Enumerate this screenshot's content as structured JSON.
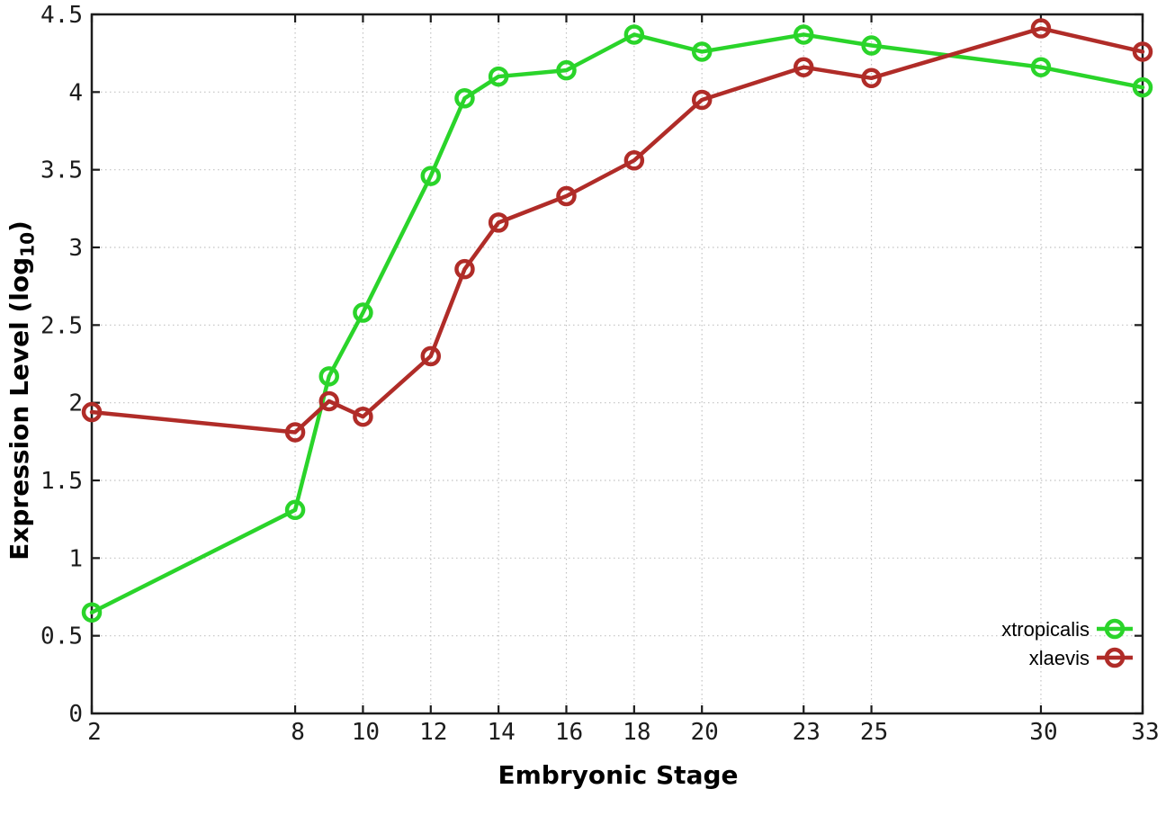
{
  "figure": {
    "background": "#ffffff",
    "axis_color": "#1c1c1c",
    "grid_color": "#c2c2c2",
    "tick_label_color": "#1c1c1c"
  },
  "chart_data": {
    "type": "line",
    "title": "",
    "xlabel": "Embryonic Stage",
    "ylabel": "Expression Level (log10)",
    "ylabel_main": "Expression Level (log",
    "ylabel_sub": "10",
    "ylabel_close": ")",
    "xlim": [
      2,
      33
    ],
    "ylim": [
      0,
      4.5
    ],
    "grid": true,
    "x_ticks": [
      2,
      8,
      10,
      12,
      14,
      16,
      18,
      20,
      23,
      25,
      30,
      33
    ],
    "x_tick_labels": [
      "2",
      "8",
      "10",
      "12",
      "14",
      "16",
      "18",
      "20",
      "23",
      "25",
      "30",
      "33"
    ],
    "y_ticks": [
      0,
      0.5,
      1,
      1.5,
      2,
      2.5,
      3,
      3.5,
      4,
      4.5
    ],
    "y_tick_labels": [
      "0",
      "0.5",
      "1",
      "1.5",
      "2",
      "2.5",
      "3",
      "3.5",
      "4",
      "4.5"
    ],
    "legend": {
      "position": "inside-bottom-right",
      "entries": [
        "xtropicalis",
        "xlaevis"
      ]
    },
    "x": [
      2,
      8,
      9,
      10,
      12,
      13,
      14,
      16,
      18,
      20,
      23,
      25,
      30,
      33
    ],
    "series": [
      {
        "name": "xtropicalis",
        "color": "#2ad42a",
        "values": [
          0.65,
          1.31,
          2.17,
          2.58,
          3.46,
          3.96,
          4.1,
          4.14,
          4.37,
          4.26,
          4.37,
          4.3,
          4.16,
          4.03
        ]
      },
      {
        "name": "xlaevis",
        "color": "#b02c28",
        "values": [
          1.94,
          1.81,
          2.01,
          1.91,
          2.3,
          2.86,
          3.16,
          3.33,
          3.56,
          3.95,
          4.16,
          4.09,
          4.41,
          4.26
        ]
      }
    ]
  }
}
